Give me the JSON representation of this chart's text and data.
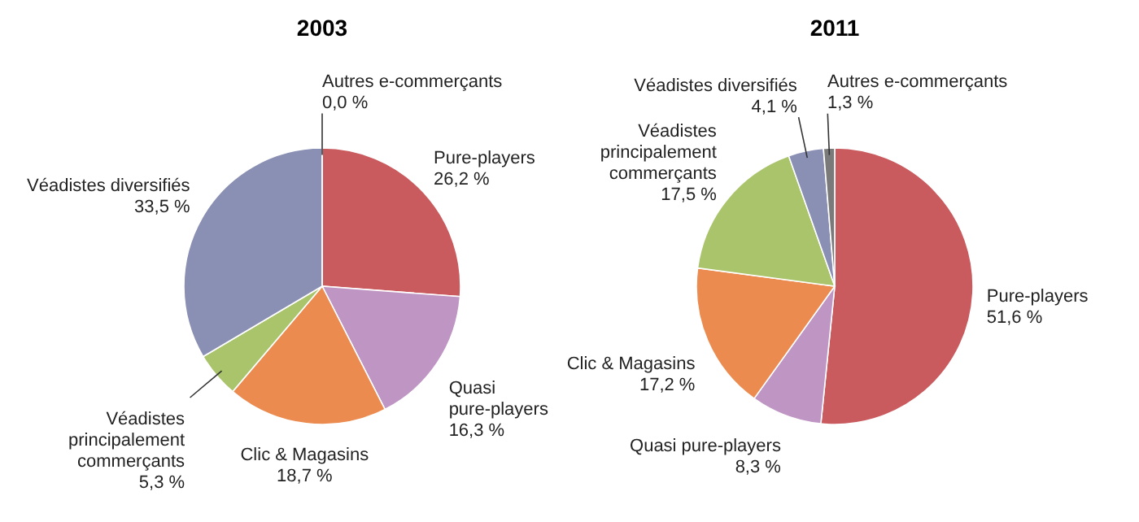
{
  "chart_data": [
    {
      "type": "pie",
      "title": "2003",
      "categories": [
        "Pure-players",
        "Quasi\npure-players",
        "Clic & Magasins",
        "Véadistes\nprincipalement\ncommerçants",
        "Véadistes diversifiés",
        "Autres e-commerçants"
      ],
      "values": [
        26.2,
        16.3,
        18.7,
        5.3,
        33.5,
        0.0
      ],
      "value_labels": [
        "26,2 %",
        "16,3 %",
        "18,7 %",
        "5,3 %",
        "33,5 %",
        "0,0 %"
      ],
      "colors": [
        "#c95a5e",
        "#bf95c4",
        "#ec8b50",
        "#a9c46b",
        "#8a8fb4",
        "#7a7a7a"
      ]
    },
    {
      "type": "pie",
      "title": "2011",
      "categories": [
        "Pure-players",
        "Quasi pure-players",
        "Clic & Magasins",
        "Véadistes\nprincipalement\ncommerçants",
        "Véadistes diversifiés",
        "Autres e-commerçants"
      ],
      "values": [
        51.6,
        8.3,
        17.2,
        17.5,
        4.1,
        1.3
      ],
      "value_labels": [
        "51,6 %",
        "8,3 %",
        "17,2 %",
        "17,5 %",
        "4,1 %",
        "1,3 %"
      ],
      "colors": [
        "#c95a5e",
        "#bf95c4",
        "#ec8b50",
        "#a9c46b",
        "#8a8fb4",
        "#7a7a7a"
      ]
    }
  ]
}
